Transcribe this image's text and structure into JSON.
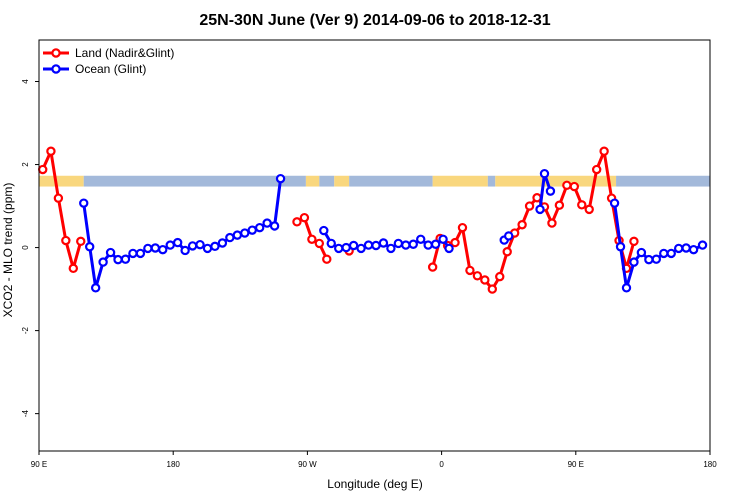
{
  "chart_data": {
    "type": "line",
    "title": "25N-30N June (Ver 9)   2014-09-06 to 2018-12-31",
    "xlabel": "Longitude (deg E)",
    "ylabel": "XCO2 - MLO trend (ppm)",
    "xlim": [
      90,
      540
    ],
    "ylim": [
      -4.9,
      5.0
    ],
    "x_ticks": [
      {
        "value": 90,
        "label": "90 E"
      },
      {
        "value": 180,
        "label": "180"
      },
      {
        "value": 270,
        "label": "90 W"
      },
      {
        "value": 360,
        "label": "0"
      },
      {
        "value": 450,
        "label": "90 E"
      },
      {
        "value": 540,
        "label": "180"
      }
    ],
    "y_ticks": [
      {
        "value": -4,
        "label": "-4"
      },
      {
        "value": -2,
        "label": "-2"
      },
      {
        "value": 0,
        "label": "0"
      },
      {
        "value": 2,
        "label": "2"
      },
      {
        "value": 4,
        "label": "4"
      }
    ],
    "legend_position": "top-left",
    "surface_band": {
      "y_range": [
        1.47,
        1.73
      ],
      "segments": [
        {
          "x": [
            90,
            120
          ],
          "surface": "land",
          "color": "#F9D77E"
        },
        {
          "x": [
            120,
            269
          ],
          "surface": "ocean",
          "color": "#A3B9DA"
        },
        {
          "x": [
            269,
            278
          ],
          "surface": "land",
          "color": "#F9D77E"
        },
        {
          "x": [
            278,
            288
          ],
          "surface": "ocean",
          "color": "#A3B9DA"
        },
        {
          "x": [
            288,
            298
          ],
          "surface": "land",
          "color": "#F9D77E"
        },
        {
          "x": [
            298,
            354
          ],
          "surface": "ocean",
          "color": "#A3B9DA"
        },
        {
          "x": [
            354,
            391
          ],
          "surface": "land",
          "color": "#F9D77E"
        },
        {
          "x": [
            391,
            396
          ],
          "surface": "ocean",
          "color": "#A3B9DA"
        },
        {
          "x": [
            396,
            477
          ],
          "surface": "land",
          "color": "#F9D77E"
        },
        {
          "x": [
            477,
            540
          ],
          "surface": "ocean",
          "color": "#A3B9DA"
        }
      ]
    },
    "series": [
      {
        "name": "Land (Nadir&Glint)",
        "color": "#FF0000",
        "segments": [
          [
            [
              92.5,
              1.88
            ],
            [
              98,
              2.32
            ],
            [
              103,
              1.19
            ],
            [
              108,
              0.17
            ],
            [
              113,
              -0.5
            ],
            [
              118,
              0.15
            ]
          ],
          [
            [
              263,
              0.62
            ],
            [
              268,
              0.72
            ],
            [
              273,
              0.2
            ],
            [
              278,
              0.1
            ],
            [
              283,
              -0.28
            ]
          ],
          [
            [
              298,
              -0.08
            ]
          ],
          [
            [
              354,
              -0.47
            ],
            [
              359,
              0.22
            ],
            [
              364,
              0.05
            ],
            [
              369,
              0.12
            ],
            [
              374,
              0.48
            ],
            [
              379,
              -0.55
            ],
            [
              384,
              -0.68
            ],
            [
              389,
              -0.78
            ],
            [
              394,
              -1.0
            ],
            [
              399,
              -0.7
            ],
            [
              404,
              -0.1
            ],
            [
              409,
              0.35
            ],
            [
              414,
              0.55
            ],
            [
              419,
              1.0
            ],
            [
              424,
              1.2
            ],
            [
              429,
              0.98
            ],
            [
              434,
              0.59
            ],
            [
              439,
              1.02
            ],
            [
              444,
              1.5
            ],
            [
              449,
              1.47
            ],
            [
              454,
              1.03
            ],
            [
              459,
              0.92
            ],
            [
              464,
              1.88
            ],
            [
              469,
              2.32
            ],
            [
              474,
              1.19
            ],
            [
              479,
              0.17
            ],
            [
              484,
              -0.5
            ],
            [
              489,
              0.15
            ]
          ]
        ]
      },
      {
        "name": "Ocean (Glint)",
        "color": "#0000FF",
        "segments": [
          [
            [
              120,
              1.07
            ],
            [
              124,
              0.02
            ],
            [
              128,
              -0.97
            ],
            [
              133,
              -0.35
            ],
            [
              138,
              -0.12
            ],
            [
              143,
              -0.29
            ],
            [
              148,
              -0.28
            ],
            [
              153,
              -0.14
            ],
            [
              158,
              -0.14
            ],
            [
              163,
              -0.02
            ],
            [
              168,
              -0.01
            ],
            [
              173,
              -0.05
            ],
            [
              178,
              0.06
            ],
            [
              183,
              0.12
            ],
            [
              188,
              -0.07
            ],
            [
              193,
              0.04
            ],
            [
              198,
              0.07
            ],
            [
              203,
              -0.02
            ],
            [
              208,
              0.03
            ],
            [
              213,
              0.11
            ],
            [
              218,
              0.24
            ],
            [
              223,
              0.3
            ],
            [
              228,
              0.35
            ],
            [
              233,
              0.42
            ],
            [
              238,
              0.48
            ],
            [
              243,
              0.59
            ],
            [
              248,
              0.52
            ],
            [
              252,
              1.66
            ]
          ],
          [
            [
              281,
              0.41
            ],
            [
              286,
              0.1
            ],
            [
              291,
              -0.02
            ],
            [
              296,
              0.0
            ],
            [
              301,
              0.05
            ],
            [
              306,
              -0.02
            ],
            [
              311,
              0.06
            ],
            [
              316,
              0.05
            ],
            [
              321,
              0.11
            ],
            [
              326,
              -0.02
            ],
            [
              331,
              0.1
            ],
            [
              336,
              0.06
            ],
            [
              341,
              0.08
            ],
            [
              346,
              0.2
            ],
            [
              351,
              0.06
            ],
            [
              356,
              0.08
            ],
            [
              361,
              0.2
            ],
            [
              365,
              -0.02
            ]
          ],
          [
            [
              402,
              0.18
            ],
            [
              405,
              0.28
            ]
          ],
          [
            [
              426,
              0.92
            ],
            [
              429,
              1.78
            ],
            [
              433,
              1.36
            ]
          ],
          [
            [
              476,
              1.07
            ],
            [
              480,
              0.02
            ],
            [
              484,
              -0.97
            ],
            [
              489,
              -0.35
            ],
            [
              494,
              -0.12
            ],
            [
              499,
              -0.29
            ],
            [
              504,
              -0.28
            ],
            [
              509,
              -0.14
            ],
            [
              514,
              -0.14
            ],
            [
              519,
              -0.02
            ],
            [
              524,
              -0.01
            ],
            [
              529,
              -0.05
            ],
            [
              535,
              0.06
            ]
          ]
        ]
      }
    ]
  }
}
